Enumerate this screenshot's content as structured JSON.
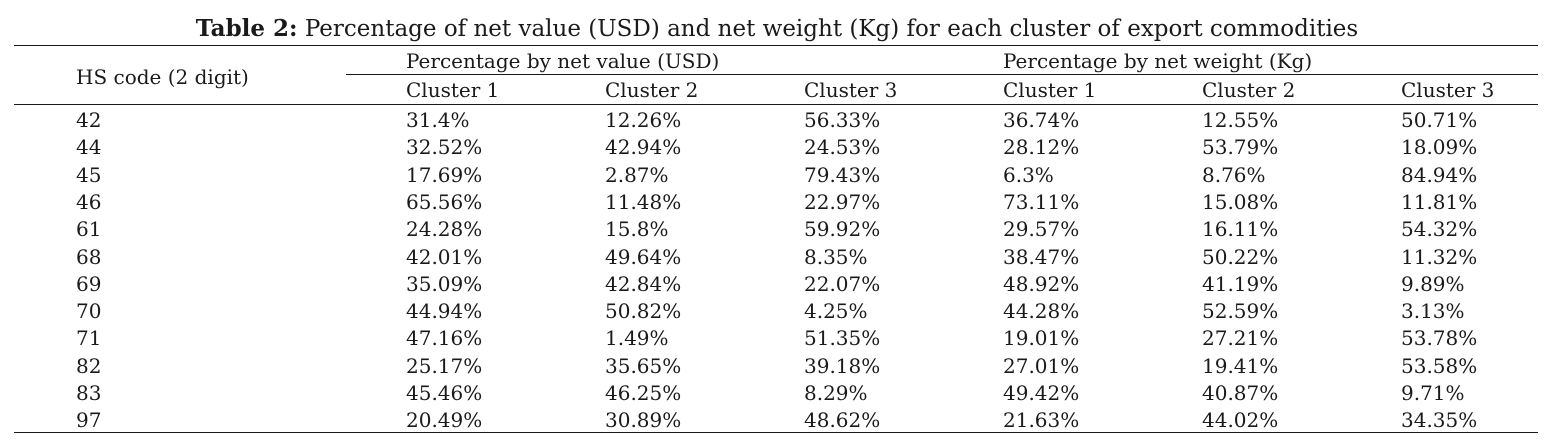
{
  "caption": {
    "label": "Table 2:",
    "text": "Percentage of net value (USD) and net weight (Kg) for each cluster of export commodities"
  },
  "table": {
    "stub_header": "HS code (2 digit)",
    "groups": [
      {
        "label": "Percentage by net value (USD)",
        "clusters": [
          "Cluster 1",
          "Cluster 2",
          "Cluster 3"
        ]
      },
      {
        "label": "Percentage by net weight (Kg)",
        "clusters": [
          "Cluster 1",
          "Cluster 2",
          "Cluster 3"
        ]
      }
    ],
    "rows": [
      {
        "hs": "42",
        "cells": [
          "31.4%",
          "12.26%",
          "56.33%",
          "36.74%",
          "12.55%",
          "50.71%"
        ]
      },
      {
        "hs": "44",
        "cells": [
          "32.52%",
          "42.94%",
          "24.53%",
          "28.12%",
          "53.79%",
          "18.09%"
        ]
      },
      {
        "hs": "45",
        "cells": [
          "17.69%",
          "2.87%",
          "79.43%",
          "6.3%",
          "8.76%",
          "84.94%"
        ]
      },
      {
        "hs": "46",
        "cells": [
          "65.56%",
          "11.48%",
          "22.97%",
          "73.11%",
          "15.08%",
          "11.81%"
        ]
      },
      {
        "hs": "61",
        "cells": [
          "24.28%",
          "15.8%",
          "59.92%",
          "29.57%",
          "16.11%",
          "54.32%"
        ]
      },
      {
        "hs": "68",
        "cells": [
          "42.01%",
          "49.64%",
          "8.35%",
          "38.47%",
          "50.22%",
          "11.32%"
        ]
      },
      {
        "hs": "69",
        "cells": [
          "35.09%",
          "42.84%",
          "22.07%",
          "48.92%",
          "41.19%",
          "9.89%"
        ]
      },
      {
        "hs": "70",
        "cells": [
          "44.94%",
          "50.82%",
          "4.25%",
          "44.28%",
          "52.59%",
          "3.13%"
        ]
      },
      {
        "hs": "71",
        "cells": [
          "47.16%",
          "1.49%",
          "51.35%",
          "19.01%",
          "27.21%",
          "53.78%"
        ]
      },
      {
        "hs": "82",
        "cells": [
          "25.17%",
          "35.65%",
          "39.18%",
          "27.01%",
          "19.41%",
          "53.58%"
        ]
      },
      {
        "hs": "83",
        "cells": [
          "45.46%",
          "46.25%",
          "8.29%",
          "49.42%",
          "40.87%",
          "9.71%"
        ]
      },
      {
        "hs": "97",
        "cells": [
          "20.49%",
          "30.89%",
          "48.62%",
          "21.63%",
          "44.02%",
          "34.35%"
        ]
      }
    ]
  }
}
